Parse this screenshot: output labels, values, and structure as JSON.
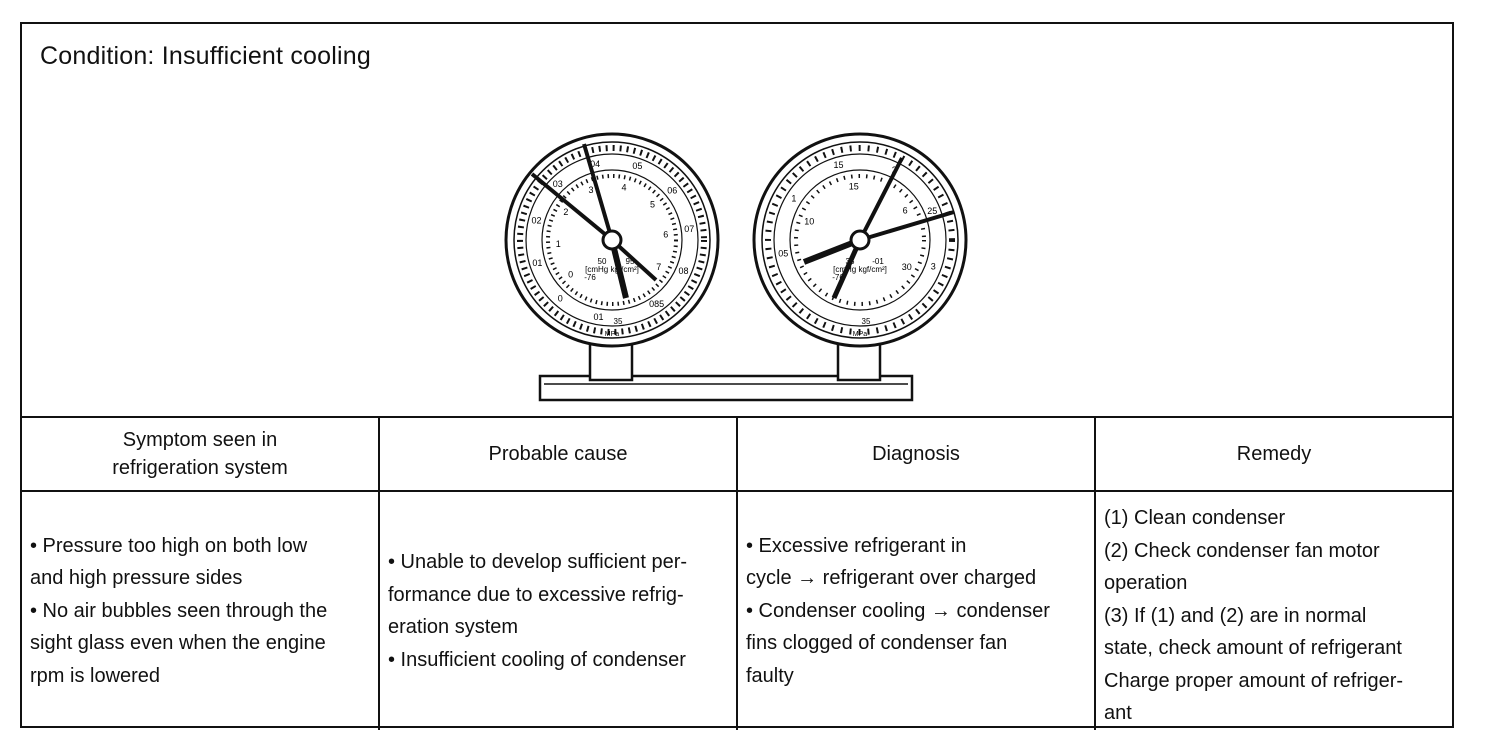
{
  "condition": "Condition: Insufficient cooling",
  "gauges": {
    "low": {
      "outer_scale": [
        "01",
        "0",
        "01",
        "02",
        "03",
        "04",
        "05",
        "06",
        "07",
        "08",
        "085"
      ],
      "inner_scale": [
        "0",
        "1",
        "2",
        "3",
        "4",
        "5",
        "6",
        "7"
      ],
      "units": "[cmHg kgf/cm²]",
      "bottom_labels": [
        "-76",
        "50",
        "95",
        "35"
      ],
      "mpa": "MPa"
    },
    "high": {
      "outer_scale": [
        "05",
        "1",
        "15",
        "2",
        "25",
        "3"
      ],
      "inner_scale": [
        "10",
        "15",
        "6",
        "30"
      ],
      "units": "[cmHg kgf/cm²]",
      "bottom_labels": [
        "-76",
        "35",
        "-01",
        "35"
      ],
      "mpa": "MPa"
    }
  },
  "table": {
    "headers": {
      "symptom": [
        "Symptom seen in",
        "refrigeration system"
      ],
      "cause": [
        "Probable cause"
      ],
      "diagnosis": [
        "Diagnosis"
      ],
      "remedy": [
        "Remedy"
      ]
    },
    "symptom": [
      "• Pressure too high on both low",
      "and high pressure sides",
      "• No air bubbles seen through the",
      "sight glass even when the engine",
      "rpm is lowered"
    ],
    "cause": [
      "• Unable to develop sufficient per-",
      "formance due to excessive refrig-",
      "eration system",
      "• Insufficient cooling of condenser"
    ],
    "diagnosis": [
      "• Excessive refrigerant in",
      "cycle → refrigerant over charged",
      "• Condenser cooling → condenser",
      "fins clogged of condenser fan",
      "faulty"
    ],
    "remedy": [
      "(1) Clean condenser",
      "(2) Check condenser fan motor",
      "operation",
      "(3) If (1) and (2) are in normal",
      "state, check amount of refrigerant",
      "Charge proper amount of refriger-",
      "ant"
    ]
  }
}
